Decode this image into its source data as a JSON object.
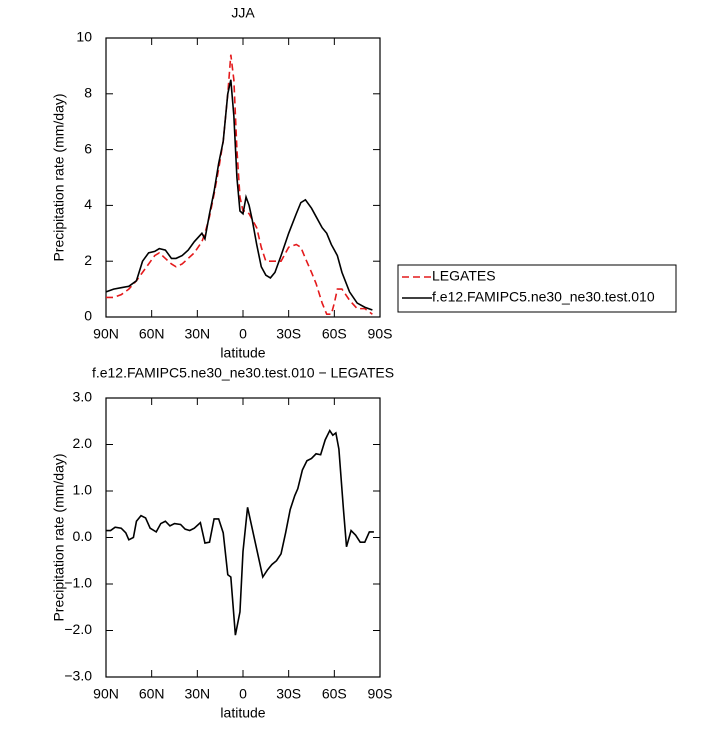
{
  "chart_data": [
    {
      "type": "line",
      "title": "JJA",
      "xlabel": "latitude",
      "ylabel": "Precipitation rate (mm/day)",
      "x": [
        90,
        85,
        80,
        75,
        70,
        66,
        62,
        58,
        55,
        51,
        47,
        44,
        40,
        36,
        32,
        27,
        25,
        22,
        19,
        16,
        13,
        10,
        8,
        6,
        4,
        2,
        0,
        -2,
        -4,
        -6,
        -9,
        -12,
        -15,
        -18,
        -21,
        -25,
        -30,
        -35,
        -38,
        -41,
        -45,
        -48,
        -52,
        -55,
        -58,
        -60,
        -62,
        -65,
        -70,
        -75,
        -80,
        -85
      ],
      "series": [
        {
          "name": "LEGATES",
          "color": "#e41a1c",
          "dash": true,
          "values": [
            0.7,
            0.7,
            0.8,
            1.0,
            1.3,
            1.6,
            1.9,
            2.2,
            2.3,
            2.1,
            1.9,
            1.8,
            1.9,
            2.1,
            2.3,
            2.7,
            3.0,
            3.6,
            4.4,
            5.3,
            6.3,
            8.0,
            9.4,
            8.5,
            6.0,
            4.3,
            3.8,
            3.8,
            3.7,
            3.5,
            3.2,
            2.5,
            2.0,
            2.0,
            2.0,
            2.0,
            2.5,
            2.6,
            2.5,
            2.1,
            1.6,
            1.2,
            0.5,
            0.1,
            0.1,
            0.5,
            1.0,
            1.0,
            0.6,
            0.3,
            0.3,
            0.1
          ]
        },
        {
          "name": "f.e12.FAMIPC5.ne30_ne30.test.010",
          "color": "#000000",
          "dash": false,
          "values": [
            0.9,
            1.0,
            1.05,
            1.1,
            1.3,
            2.0,
            2.3,
            2.35,
            2.45,
            2.4,
            2.1,
            2.1,
            2.2,
            2.4,
            2.7,
            3.0,
            2.8,
            3.7,
            4.5,
            5.5,
            6.3,
            8.0,
            8.5,
            7.2,
            5.0,
            3.8,
            3.7,
            4.3,
            4.0,
            3.5,
            2.6,
            1.8,
            1.5,
            1.4,
            1.6,
            2.2,
            3.0,
            3.7,
            4.1,
            4.2,
            3.9,
            3.6,
            3.2,
            3.0,
            2.6,
            2.4,
            2.2,
            1.6,
            0.9,
            0.5,
            0.35,
            0.25
          ]
        }
      ],
      "xlim": [
        90,
        -90
      ],
      "xticks": [
        {
          "value": 90,
          "label": "90N"
        },
        {
          "value": 60,
          "label": "60N"
        },
        {
          "value": 30,
          "label": "30N"
        },
        0,
        {
          "value": -30,
          "label": "30S"
        },
        {
          "value": -60,
          "label": "60S"
        },
        {
          "value": -90,
          "label": "90S"
        }
      ],
      "ylim": [
        0,
        10
      ],
      "yticks": [
        0,
        2,
        4,
        6,
        8,
        10
      ],
      "legend": "right"
    },
    {
      "type": "line",
      "title": "f.e12.FAMIPC5.ne30_ne30.test.010 − LEGATES",
      "xlabel": "latitude",
      "ylabel": "Precipitation rate (mm/day)",
      "x": [
        90,
        87,
        84,
        80,
        77,
        75,
        72,
        70,
        67,
        64,
        61,
        57,
        54,
        51,
        48,
        45,
        41,
        38,
        35,
        32,
        28,
        25,
        22,
        19,
        16,
        13,
        10,
        8,
        5,
        2,
        0,
        -3,
        -6,
        -10,
        -13,
        -16,
        -19,
        -22,
        -25,
        -28,
        -31,
        -34,
        -36,
        -39,
        -42,
        -45,
        -48,
        -51,
        -54,
        -57,
        -59,
        -61,
        -63,
        -66,
        -68,
        -71,
        -74,
        -77,
        -80,
        -83,
        -86
      ],
      "series": [
        {
          "color": "#000000",
          "dash": false,
          "values": [
            0.15,
            0.15,
            0.22,
            0.2,
            0.1,
            -0.05,
            0,
            0.35,
            0.47,
            0.42,
            0.2,
            0.12,
            0.3,
            0.35,
            0.25,
            0.3,
            0.28,
            0.18,
            0.15,
            0.2,
            0.32,
            -0.12,
            -0.1,
            0.4,
            0.4,
            0.1,
            -0.8,
            -0.85,
            -2.1,
            -1.6,
            -0.3,
            0.65,
            0.2,
            -0.4,
            -0.85,
            -0.7,
            -0.58,
            -0.5,
            -0.35,
            0.1,
            0.6,
            0.9,
            1.05,
            1.45,
            1.65,
            1.7,
            1.8,
            1.78,
            2.1,
            2.3,
            2.2,
            2.25,
            1.9,
            0.6,
            -0.2,
            0.15,
            0.05,
            -0.1,
            -0.1,
            0.12,
            0.12
          ]
        }
      ],
      "xlim": [
        90,
        -90
      ],
      "xticks": [
        {
          "value": 90,
          "label": "90N"
        },
        {
          "value": 60,
          "label": "60N"
        },
        {
          "value": 30,
          "label": "30N"
        },
        0,
        {
          "value": -30,
          "label": "30S"
        },
        {
          "value": -60,
          "label": "60S"
        },
        {
          "value": -90,
          "label": "90S"
        }
      ],
      "ylim": [
        -3,
        3
      ],
      "yticks": [
        {
          "value": -3,
          "label": "−3.0"
        },
        {
          "value": -2,
          "label": "−2.0"
        },
        {
          "value": -1,
          "label": "−1.0"
        },
        {
          "value": 0,
          "label": "0.0"
        },
        {
          "value": 1,
          "label": "1.0"
        },
        {
          "value": 2,
          "label": "2.0"
        },
        {
          "value": 3,
          "label": "3.0"
        }
      ]
    }
  ]
}
